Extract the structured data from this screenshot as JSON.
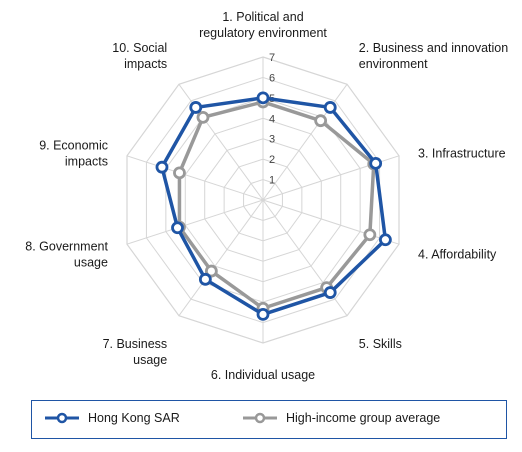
{
  "chart_data": {
    "type": "radar",
    "axes": [
      [
        "1. Political and",
        "regulatory environment"
      ],
      [
        "2. Business and innovation",
        "environment"
      ],
      [
        "3. Infrastructure"
      ],
      [
        "4. Affordability"
      ],
      [
        "5. Skills"
      ],
      [
        "6. Individual usage"
      ],
      [
        "7. Business",
        "usage"
      ],
      [
        "8. Government",
        "usage"
      ],
      [
        "9. Economic",
        "impacts"
      ],
      [
        "10. Social",
        "impacts"
      ]
    ],
    "rlim": [
      0,
      7
    ],
    "ticks": [
      1,
      2,
      3,
      4,
      5,
      6,
      7
    ],
    "grid": true,
    "legend_position": "bottom",
    "series": [
      {
        "name": "Hong Kong SAR",
        "color": "#1f55a5",
        "values": [
          5.0,
          5.6,
          5.8,
          6.3,
          5.6,
          5.6,
          4.8,
          4.4,
          5.2,
          5.6
        ]
      },
      {
        "name": "High-income group average",
        "color": "#999999",
        "values": [
          4.8,
          4.8,
          5.7,
          5.5,
          5.3,
          5.3,
          4.3,
          4.3,
          4.3,
          5.0
        ]
      }
    ]
  }
}
